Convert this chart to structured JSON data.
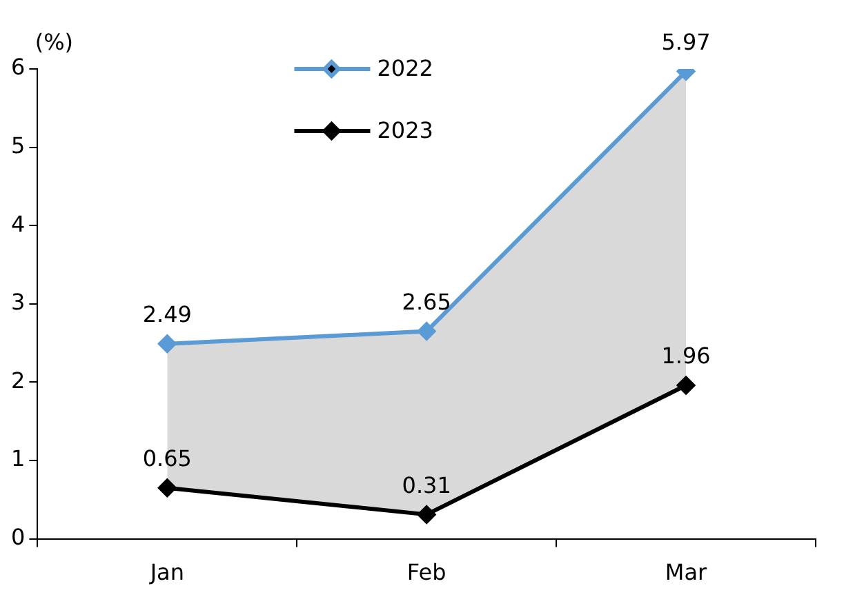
{
  "chart_data": {
    "type": "line",
    "ylabel": "(%)",
    "categories": [
      "Jan",
      "Feb",
      "Mar"
    ],
    "series": [
      {
        "name": "2022",
        "color": "#5b9bd5",
        "values": [
          2.49,
          2.65,
          5.97
        ],
        "lower": [
          0.65,
          0.31,
          1.96
        ],
        "upper": [
          2.49,
          2.65,
          5.97
        ]
      },
      {
        "name": "2023",
        "color": "#000000",
        "values": [
          0.65,
          0.31,
          1.96
        ]
      }
    ],
    "ylim": [
      0,
      6
    ],
    "yticks": [
      0,
      1,
      2,
      3,
      4,
      5,
      6
    ],
    "grid": false,
    "legend": "top",
    "marker": "diamond",
    "line_style": "solid",
    "data_labels": true
  }
}
